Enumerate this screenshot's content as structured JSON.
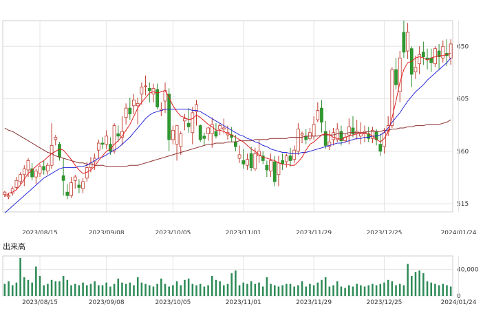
{
  "chart_data": [
    {
      "type": "candlestick",
      "y_ticks": [
        515,
        560,
        605,
        650
      ],
      "ylim": [
        508,
        672
      ],
      "x_ticks": [
        "2023/08/15",
        "2023/09/08",
        "2023/10/05",
        "2023/11/01",
        "2023/11/29",
        "2023/12/25",
        "2024/01/24"
      ],
      "x_tick_index": [
        9,
        26,
        43,
        61,
        79,
        97,
        116
      ],
      "candles": [
        [
          523,
          526,
          521,
          525
        ],
        [
          521,
          524,
          519,
          522
        ],
        [
          524,
          530,
          522,
          528
        ],
        [
          529,
          538,
          527,
          535
        ],
        [
          534,
          542,
          532,
          540
        ],
        [
          540,
          548,
          530,
          545
        ],
        [
          544,
          554,
          538,
          552
        ],
        [
          545,
          550,
          535,
          538
        ],
        [
          538,
          545,
          532,
          543
        ],
        [
          541,
          549,
          538,
          547
        ],
        [
          547,
          552,
          540,
          544
        ],
        [
          543,
          550,
          540,
          548
        ],
        [
          548,
          584,
          545,
          565
        ],
        [
          570,
          574,
          565,
          572
        ],
        [
          566,
          568,
          552,
          555
        ],
        [
          539,
          554,
          522,
          535
        ],
        [
          525,
          532,
          519,
          522
        ],
        [
          522,
          538,
          520,
          533
        ],
        [
          535,
          540,
          528,
          538
        ],
        [
          531,
          536,
          524,
          529
        ],
        [
          528,
          537,
          524,
          534
        ],
        [
          537,
          551,
          534,
          546
        ],
        [
          546,
          555,
          542,
          550
        ],
        [
          551,
          558,
          544,
          554
        ],
        [
          561,
          570,
          554,
          567
        ],
        [
          567,
          572,
          562,
          566
        ],
        [
          566,
          578,
          562,
          573
        ],
        [
          566,
          572,
          557,
          560
        ],
        [
          560,
          584,
          558,
          582
        ],
        [
          575,
          582,
          568,
          573
        ],
        [
          572,
          590,
          565,
          577
        ],
        [
          589,
          601,
          583,
          597
        ],
        [
          597,
          606,
          587,
          592
        ],
        [
          599,
          609,
          592,
          604
        ],
        [
          599,
          606,
          583,
          601
        ],
        [
          609,
          619,
          600,
          615
        ],
        [
          616,
          625,
          608,
          616
        ],
        [
          614,
          619,
          602,
          612
        ],
        [
          609,
          618,
          602,
          614
        ],
        [
          613,
          618,
          596,
          598
        ],
        [
          595,
          602,
          590,
          596
        ],
        [
          603,
          619,
          593,
          612
        ],
        [
          609,
          614,
          560,
          570
        ],
        [
          570,
          582,
          566,
          578
        ],
        [
          566,
          582,
          552,
          582
        ],
        [
          564,
          577,
          557,
          575
        ],
        [
          586,
          592,
          578,
          588
        ],
        [
          584,
          597,
          576,
          581
        ],
        [
          576,
          598,
          566,
          593
        ],
        [
          594,
          604,
          582,
          600
        ],
        [
          582,
          583,
          568,
          570
        ],
        [
          573,
          576,
          565,
          571
        ],
        [
          575,
          581,
          569,
          580
        ],
        [
          575,
          589,
          563,
          583
        ],
        [
          577,
          584,
          571,
          573
        ],
        [
          579,
          584,
          574,
          582
        ],
        [
          579,
          588,
          575,
          580
        ],
        [
          574,
          582,
          570,
          576
        ],
        [
          574,
          581,
          568,
          572
        ],
        [
          568,
          574,
          560,
          564
        ],
        [
          554,
          565,
          550,
          557
        ],
        [
          552,
          562,
          545,
          549
        ],
        [
          548,
          558,
          544,
          553
        ],
        [
          558,
          564,
          543,
          546
        ],
        [
          545,
          563,
          543,
          558
        ],
        [
          556,
          570,
          550,
          560
        ],
        [
          556,
          560,
          549,
          552
        ],
        [
          548,
          552,
          538,
          544
        ],
        [
          543,
          558,
          538,
          552
        ],
        [
          551,
          556,
          530,
          534
        ],
        [
          540,
          556,
          530,
          550
        ],
        [
          552,
          558,
          544,
          549
        ],
        [
          551,
          558,
          546,
          556
        ],
        [
          556,
          563,
          547,
          552
        ],
        [
          553,
          565,
          550,
          561
        ],
        [
          560,
          584,
          557,
          579
        ],
        [
          574,
          577,
          567,
          575
        ],
        [
          573,
          579,
          566,
          570
        ],
        [
          571,
          580,
          569,
          576
        ],
        [
          573,
          590,
          570,
          583
        ],
        [
          587,
          602,
          585,
          595
        ],
        [
          597,
          604,
          576,
          585
        ],
        [
          577,
          586,
          562,
          565
        ],
        [
          564,
          578,
          561,
          568
        ],
        [
          570,
          580,
          565,
          576
        ],
        [
          570,
          584,
          568,
          579
        ],
        [
          577,
          582,
          565,
          569
        ],
        [
          569,
          575,
          567,
          572
        ],
        [
          574,
          588,
          566,
          581
        ],
        [
          580,
          590,
          572,
          575
        ],
        [
          575,
          587,
          570,
          577
        ],
        [
          573,
          585,
          566,
          575
        ],
        [
          575,
          582,
          568,
          577
        ],
        [
          575,
          581,
          568,
          571
        ],
        [
          571,
          581,
          567,
          578
        ],
        [
          577,
          579,
          565,
          570
        ],
        [
          566,
          575,
          556,
          560
        ],
        [
          564,
          580,
          558,
          576
        ],
        [
          577,
          590,
          573,
          582
        ],
        [
          582,
          632,
          580,
          630
        ],
        [
          630,
          640,
          613,
          617
        ],
        [
          611,
          646,
          602,
          640
        ],
        [
          662,
          672,
          640,
          645
        ],
        [
          646,
          670,
          639,
          662
        ],
        [
          648,
          650,
          615,
          626
        ],
        [
          628,
          642,
          622,
          632
        ],
        [
          635,
          650,
          626,
          643
        ],
        [
          645,
          654,
          634,
          641
        ],
        [
          640,
          648,
          630,
          639
        ],
        [
          640,
          648,
          628,
          636
        ],
        [
          635,
          650,
          632,
          648
        ],
        [
          646,
          652,
          630,
          641
        ],
        [
          640,
          655,
          636,
          650
        ],
        [
          644,
          656,
          633,
          642
        ],
        [
          640,
          656,
          634,
          652
        ]
      ],
      "ma_short": [
        521,
        524,
        525,
        527,
        531,
        536,
        541,
        544,
        547,
        550,
        552,
        555,
        558,
        560,
        562,
        561,
        557,
        553,
        548,
        544,
        541,
        542,
        544,
        547,
        552,
        556,
        560,
        562,
        566,
        569,
        573,
        578,
        583,
        590,
        597,
        602,
        606,
        610,
        611,
        610,
        611,
        612,
        606,
        599,
        594,
        590,
        589,
        587,
        588,
        591,
        589,
        586,
        583,
        581,
        578,
        578,
        577,
        575,
        574,
        572,
        570,
        568,
        565,
        562,
        560,
        557,
        555,
        554,
        553,
        552,
        550,
        549,
        549,
        548,
        548,
        551,
        555,
        561,
        566,
        568,
        571,
        574,
        575,
        574,
        572,
        571,
        570,
        572,
        573,
        574,
        575,
        576,
        575,
        575,
        573,
        570,
        568,
        571,
        577,
        589,
        603,
        619,
        630,
        636,
        637,
        640,
        641,
        640,
        638,
        640,
        641,
        642,
        642,
        643,
        644
      ],
      "ma_mid": [
        507,
        510,
        513,
        516,
        519,
        522,
        525,
        528,
        531,
        534,
        537,
        539,
        541,
        543,
        545,
        546,
        546,
        546,
        546,
        547,
        547,
        548,
        550,
        552,
        554,
        555,
        557,
        559,
        561,
        563,
        566,
        569,
        572,
        576,
        580,
        584,
        588,
        591,
        593,
        594,
        595,
        596,
        596,
        596,
        596,
        596,
        596,
        596,
        595,
        595,
        594,
        592,
        590,
        588,
        586,
        584,
        582,
        580,
        578,
        576,
        574,
        573,
        571,
        570,
        568,
        567,
        565,
        564,
        562,
        561,
        560,
        559,
        559,
        558,
        558,
        558,
        559,
        559,
        560,
        561,
        562,
        563,
        564,
        565,
        566,
        567,
        567,
        568,
        569,
        570,
        571,
        571,
        572,
        572,
        573,
        573,
        574,
        576,
        580,
        585,
        589,
        593,
        598,
        603,
        607,
        611,
        614,
        617,
        621,
        624,
        627,
        630,
        633,
        636,
        640
      ],
      "ma_long": [
        580,
        578,
        577,
        575,
        573,
        571,
        569,
        567,
        565,
        563,
        561,
        559,
        558,
        556,
        555,
        554,
        553,
        552,
        551,
        550,
        550,
        549,
        549,
        548,
        548,
        548,
        547,
        547,
        547,
        547,
        547,
        547,
        548,
        548,
        548,
        549,
        550,
        551,
        552,
        553,
        554,
        555,
        556,
        557,
        558,
        559,
        560,
        561,
        562,
        563,
        564,
        565,
        566,
        566,
        567,
        567,
        567,
        568,
        568,
        568,
        569,
        569,
        569,
        569,
        570,
        570,
        570,
        570,
        571,
        571,
        571,
        571,
        571,
        572,
        572,
        572,
        572,
        573,
        573,
        573,
        573,
        574,
        574,
        574,
        574,
        575,
        575,
        575,
        576,
        576,
        576,
        576,
        576,
        577,
        577,
        577,
        577,
        578,
        578,
        579,
        579,
        580,
        580,
        581,
        581,
        582,
        582,
        582,
        583,
        583,
        583,
        583,
        584,
        585,
        587
      ]
    },
    {
      "type": "bar",
      "title": "出来高",
      "y_ticks": [
        0,
        40000
      ],
      "y_tick_labels": [
        "0",
        "40,000"
      ],
      "ylim": [
        0,
        60000
      ],
      "x_ticks": [
        "2023/08/15",
        "2023/09/08",
        "2023/10/05",
        "2023/11/01",
        "2023/11/29",
        "2023/12/25",
        "2024/01/24"
      ],
      "values": [
        18000,
        22000,
        16000,
        20000,
        57000,
        28000,
        24000,
        20000,
        44000,
        30000,
        16000,
        18000,
        24000,
        22000,
        22000,
        30000,
        24000,
        16000,
        18000,
        16000,
        20000,
        16000,
        18000,
        22000,
        16000,
        16000,
        20000,
        14000,
        18000,
        26000,
        20000,
        18000,
        20000,
        16000,
        28000,
        20000,
        18000,
        16000,
        14000,
        18000,
        26000,
        18000,
        14000,
        16000,
        22000,
        16000,
        24000,
        26000,
        18000,
        16000,
        18000,
        14000,
        16000,
        30000,
        24000,
        22000,
        16000,
        18000,
        34000,
        38000,
        16000,
        20000,
        18000,
        22000,
        18000,
        20000,
        14000,
        28000,
        18000,
        16000,
        14000,
        16000,
        18000,
        18000,
        14000,
        16000,
        22000,
        14000,
        18000,
        16000,
        20000,
        24000,
        28000,
        14000,
        16000,
        22000,
        14000,
        12000,
        16000,
        14000,
        18000,
        16000,
        14000,
        16000,
        18000,
        16000,
        18000,
        20000,
        24000,
        22000,
        16000,
        18000,
        16000,
        48000,
        30000,
        36000,
        38000,
        34000,
        22000,
        20000,
        18000,
        16000,
        18000,
        16000,
        14000
      ]
    }
  ]
}
